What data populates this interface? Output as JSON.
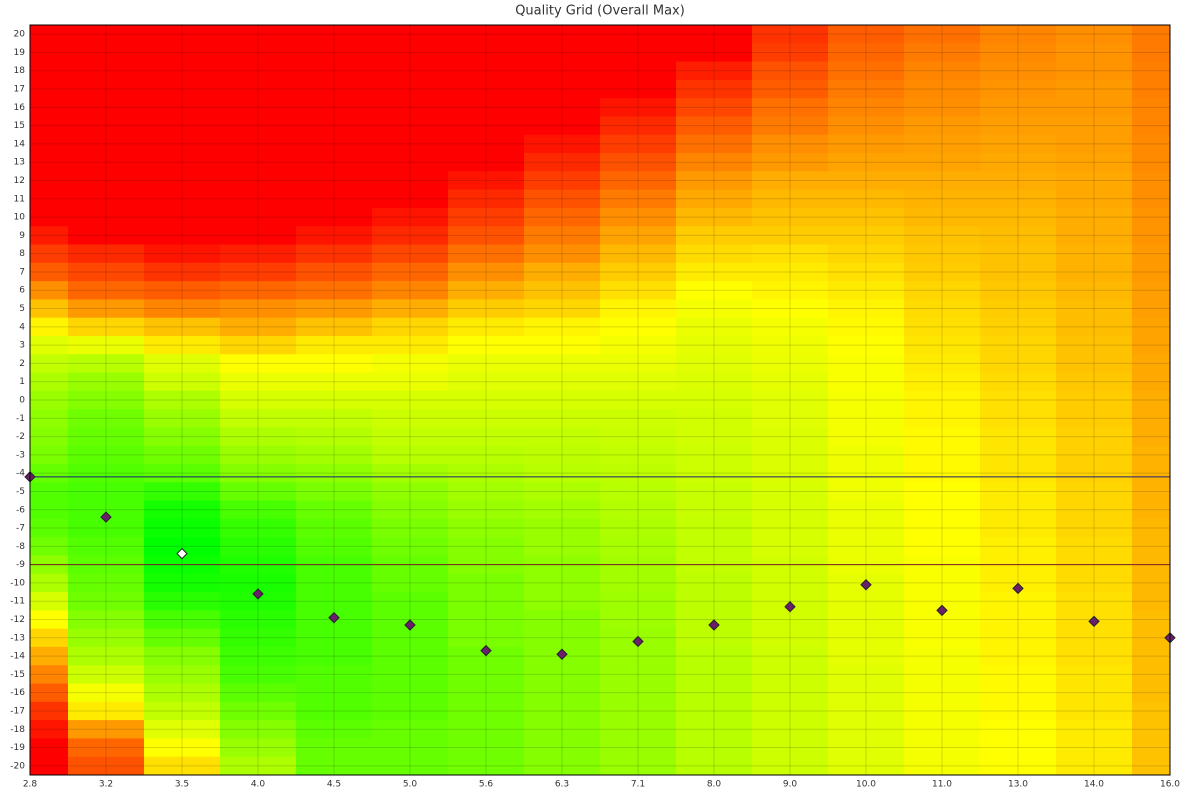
{
  "chart_data": {
    "type": "heatmap",
    "title": "Quality Grid (Overall Max)",
    "categories": [
      "2.8",
      "3.2",
      "3.5",
      "4.0",
      "4.5",
      "5.0",
      "5.6",
      "6.3",
      "7.1",
      "8.0",
      "9.0",
      "10.0",
      "11.0",
      "13.0",
      "14.0",
      "16.0"
    ],
    "y": [
      20,
      19,
      18,
      17,
      16,
      15,
      14,
      13,
      12,
      11,
      10,
      9,
      8,
      7,
      6,
      5,
      4,
      3,
      2,
      1,
      0,
      -1,
      -2,
      -3,
      -4,
      -5,
      -6,
      -7,
      -8,
      -9,
      -10,
      -11,
      -12,
      -13,
      -14,
      -15,
      -16,
      -17,
      -18,
      -19,
      -20
    ],
    "ylim": [
      -20.5,
      20.5
    ],
    "yticks": [
      20,
      19,
      18,
      17,
      16,
      15,
      14,
      13,
      12,
      11,
      10,
      9,
      8,
      7,
      6,
      5,
      4,
      3,
      2,
      1,
      0,
      -1,
      -2,
      -3,
      -4,
      -5,
      -6,
      -7,
      -8,
      -9,
      -10,
      -11,
      -12,
      -13,
      -14,
      -15,
      -16,
      -17,
      -18,
      -19,
      -20
    ],
    "grid": true,
    "colorscale": [
      "#ff0000",
      "#ffff00",
      "#00ff00"
    ],
    "zlim": [
      0,
      100
    ],
    "z": [
      [
        0,
        0,
        0,
        0,
        0,
        0,
        0,
        0,
        0,
        0,
        0,
        5,
        12,
        18,
        28,
        38,
        48,
        56,
        62,
        66,
        70,
        72,
        74,
        76,
        80,
        84,
        84,
        82,
        78,
        72,
        66,
        58,
        50,
        42,
        34,
        26,
        18,
        10,
        4,
        0,
        0
      ],
      [
        0,
        0,
        0,
        0,
        0,
        0,
        0,
        0,
        0,
        0,
        0,
        0,
        8,
        14,
        20,
        30,
        42,
        54,
        64,
        70,
        74,
        78,
        80,
        82,
        84,
        86,
        86,
        86,
        84,
        82,
        80,
        78,
        74,
        70,
        66,
        60,
        52,
        46,
        30,
        20,
        16
      ],
      [
        0,
        0,
        0,
        0,
        0,
        0,
        0,
        0,
        0,
        0,
        0,
        0,
        4,
        10,
        18,
        26,
        38,
        46,
        56,
        60,
        66,
        70,
        74,
        78,
        82,
        90,
        96,
        98,
        100,
        98,
        96,
        92,
        86,
        80,
        74,
        70,
        66,
        62,
        56,
        50,
        44
      ],
      [
        0,
        0,
        0,
        0,
        0,
        0,
        0,
        0,
        0,
        0,
        0,
        0,
        6,
        12,
        20,
        28,
        34,
        42,
        50,
        54,
        58,
        62,
        66,
        70,
        74,
        80,
        86,
        90,
        92,
        94,
        95,
        94,
        92,
        90,
        88,
        86,
        82,
        78,
        74,
        70,
        66
      ],
      [
        0,
        0,
        0,
        0,
        0,
        0,
        0,
        0,
        0,
        0,
        0,
        4,
        10,
        16,
        22,
        30,
        38,
        46,
        50,
        54,
        58,
        62,
        65,
        68,
        72,
        76,
        80,
        82,
        84,
        86,
        86,
        86,
        86,
        86,
        86,
        84,
        84,
        84,
        82,
        80,
        80
      ],
      [
        0,
        0,
        0,
        0,
        0,
        0,
        0,
        0,
        0,
        0,
        4,
        8,
        14,
        20,
        26,
        34,
        42,
        46,
        52,
        54,
        58,
        60,
        62,
        64,
        68,
        72,
        74,
        76,
        78,
        80,
        80,
        82,
        82,
        82,
        82,
        82,
        82,
        82,
        80,
        80,
        80
      ],
      [
        0,
        0,
        0,
        0,
        0,
        0,
        0,
        0,
        4,
        8,
        12,
        16,
        22,
        28,
        34,
        40,
        46,
        50,
        54,
        56,
        58,
        60,
        62,
        64,
        66,
        68,
        70,
        72,
        74,
        74,
        76,
        76,
        76,
        76,
        78,
        78,
        78,
        78,
        78,
        78,
        78
      ],
      [
        0,
        0,
        0,
        0,
        0,
        0,
        4,
        8,
        12,
        16,
        20,
        24,
        28,
        34,
        38,
        42,
        48,
        50,
        54,
        56,
        58,
        60,
        62,
        63,
        64,
        66,
        68,
        70,
        70,
        72,
        72,
        72,
        74,
        74,
        74,
        74,
        74,
        74,
        74,
        74,
        74
      ],
      [
        0,
        0,
        0,
        0,
        4,
        8,
        12,
        16,
        20,
        24,
        28,
        32,
        36,
        40,
        44,
        48,
        50,
        52,
        54,
        56,
        58,
        60,
        61,
        62,
        63,
        64,
        65,
        66,
        67,
        68,
        68,
        69,
        69,
        70,
        70,
        70,
        70,
        70,
        70,
        70,
        70
      ],
      [
        0,
        0,
        6,
        10,
        14,
        18,
        22,
        26,
        30,
        33,
        36,
        40,
        43,
        46,
        50,
        52,
        54,
        55,
        56,
        57,
        58,
        59,
        59,
        60,
        60,
        61,
        61,
        62,
        62,
        62,
        63,
        63,
        63,
        63,
        64,
        64,
        64,
        64,
        64,
        64,
        64
      ],
      [
        10,
        12,
        16,
        18,
        22,
        24,
        28,
        30,
        34,
        36,
        38,
        40,
        44,
        46,
        48,
        50,
        52,
        53,
        54,
        55,
        56,
        56,
        57,
        57,
        57,
        58,
        58,
        58,
        58,
        59,
        59,
        59,
        59,
        59,
        60,
        60,
        60,
        60,
        60,
        60,
        60
      ],
      [
        18,
        20,
        22,
        24,
        26,
        28,
        30,
        32,
        34,
        36,
        38,
        40,
        42,
        44,
        46,
        48,
        49,
        50,
        51,
        51,
        52,
        52,
        52,
        53,
        53,
        53,
        54,
        54,
        54,
        54,
        55,
        55,
        55,
        55,
        55,
        56,
        56,
        56,
        56,
        56,
        56
      ],
      [
        22,
        24,
        26,
        27,
        28,
        30,
        31,
        32,
        34,
        35,
        36,
        38,
        39,
        40,
        42,
        43,
        44,
        45,
        46,
        47,
        48,
        48,
        49,
        49,
        49,
        50,
        50,
        50,
        50,
        51,
        51,
        51,
        51,
        51,
        52,
        52,
        52,
        52,
        52,
        52,
        52
      ],
      [
        26,
        27,
        28,
        29,
        30,
        31,
        32,
        33,
        34,
        35,
        36,
        37,
        38,
        38,
        39,
        40,
        41,
        42,
        42,
        43,
        44,
        44,
        45,
        45,
        45,
        46,
        46,
        46,
        47,
        47,
        47,
        48,
        48,
        48,
        48,
        49,
        49,
        49,
        50,
        50,
        50
      ],
      [
        28,
        29,
        29,
        30,
        30,
        31,
        31,
        32,
        33,
        33,
        34,
        34,
        35,
        35,
        36,
        37,
        37,
        38,
        38,
        39,
        40,
        40,
        41,
        41,
        41,
        42,
        42,
        42,
        43,
        43,
        43,
        44,
        44,
        44,
        44,
        45,
        45,
        45,
        46,
        46,
        46
      ],
      [
        24,
        24,
        25,
        25,
        26,
        26,
        27,
        27,
        28,
        28,
        29,
        29,
        30,
        30,
        31,
        31,
        32,
        32,
        33,
        33,
        34,
        34,
        34,
        35,
        35,
        35,
        35,
        36,
        36,
        36,
        36,
        36,
        37,
        37,
        37,
        37,
        37,
        38,
        38,
        38,
        38
      ]
    ],
    "markers": {
      "values": [
        -4.2,
        -6.4,
        -8.4,
        -10.6,
        -11.9,
        -12.3,
        -13.7,
        -13.9,
        -13.2,
        -12.3,
        -11.3,
        -10.1,
        -11.5,
        -10.3,
        -12.1,
        -13.0
      ],
      "colors": [
        "#6b1f6b",
        "#6b1f6b",
        "#ffffff",
        "#6b1f6b",
        "#6b1f6b",
        "#6b1f6b",
        "#6b1f6b",
        "#6b1f6b",
        "#6b1f6b",
        "#6b1f6b",
        "#6b1f6b",
        "#6b1f6b",
        "#6b1f6b",
        "#6b1f6b",
        "#6b1f6b",
        "#6b1f6b"
      ]
    },
    "hlines": [
      {
        "value": -4.2,
        "color": "#1f1f7a"
      },
      {
        "value": -9.0,
        "color": "#7a1f2a"
      }
    ]
  }
}
